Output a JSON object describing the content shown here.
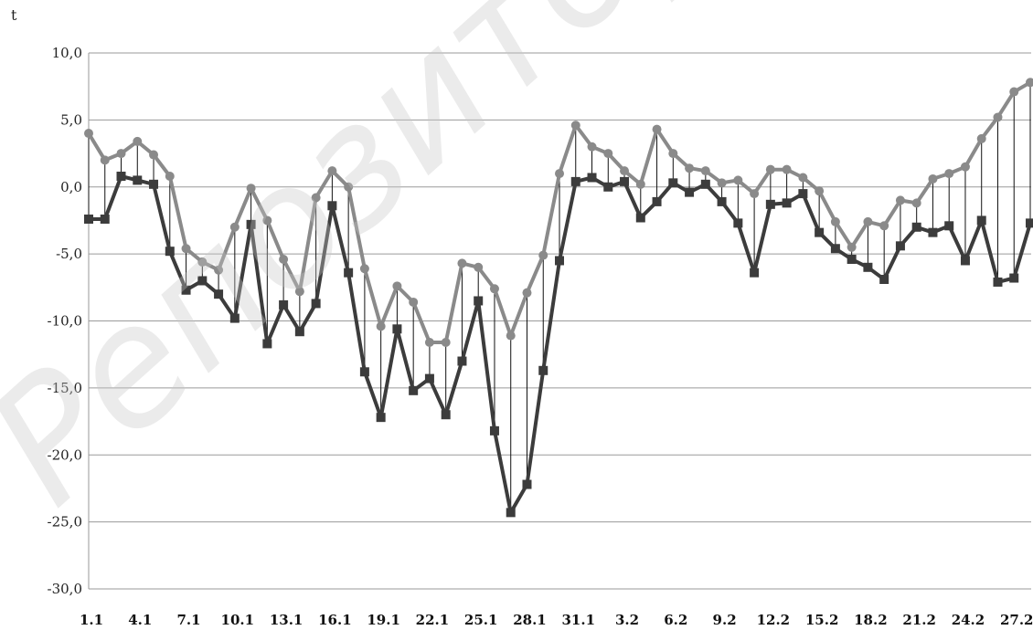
{
  "watermark": "Репозиторий",
  "chart_data": {
    "type": "line",
    "title": "",
    "xlabel": "",
    "ylabel": "t",
    "ylim": [
      -30,
      10
    ],
    "yticks": [
      10,
      5,
      0,
      -5,
      -10,
      -15,
      -20,
      -25,
      -30
    ],
    "ytick_labels": [
      "10,0",
      "5,0",
      "0,0",
      "-5,0",
      "-10,0",
      "-15,0",
      "-20,0",
      "-25,0",
      "-30,0"
    ],
    "grid": true,
    "legend": "none",
    "x_tick_labels": [
      "1.1",
      "4.1",
      "7.1",
      "10.1",
      "13.1",
      "16.1",
      "19.1",
      "22.1",
      "25.1",
      "28.1",
      "31.1",
      "3.2",
      "6.2",
      "9.2",
      "12.2",
      "15.2",
      "18.2",
      "21.2",
      "24.2",
      "27.2"
    ],
    "x_tick_index": [
      0,
      3,
      6,
      9,
      12,
      15,
      18,
      21,
      24,
      27,
      30,
      33,
      36,
      39,
      42,
      45,
      48,
      51,
      54,
      57
    ],
    "drop_lines": true,
    "series": [
      {
        "color": "#8a8a8a",
        "marker": "circle",
        "values": [
          4.0,
          2.0,
          2.5,
          3.4,
          2.4,
          0.8,
          -4.6,
          -5.6,
          -6.2,
          -3.0,
          -0.1,
          -2.5,
          -5.4,
          -7.8,
          -0.8,
          1.2,
          0.0,
          -6.1,
          -10.4,
          -7.4,
          -8.6,
          -11.6,
          -11.6,
          -5.7,
          -6.0,
          -7.6,
          -11.1,
          -7.9,
          -5.1,
          1.0,
          4.6,
          3.0,
          2.5,
          1.2,
          0.2,
          4.3,
          2.5,
          1.4,
          1.2,
          0.3,
          0.5,
          -0.5,
          1.3,
          1.3,
          0.7,
          -0.3,
          -2.6,
          -4.5,
          -2.6,
          -2.9,
          -1.0,
          -1.2,
          0.6,
          1.0,
          1.5,
          3.6,
          5.2,
          7.1,
          7.8
        ]
      },
      {
        "color": "#3c3c3c",
        "marker": "square",
        "values": [
          -2.4,
          -2.4,
          0.8,
          0.5,
          0.2,
          -4.8,
          -7.7,
          -7.0,
          -8.0,
          -9.8,
          -2.8,
          -11.7,
          -8.8,
          -10.8,
          -8.7,
          -1.4,
          -6.4,
          -13.8,
          -17.2,
          -10.6,
          -15.2,
          -14.3,
          -17.0,
          -13.0,
          -8.5,
          -18.2,
          -24.3,
          -22.2,
          -13.7,
          -5.5,
          0.4,
          0.7,
          0.0,
          0.4,
          -2.3,
          -1.1,
          0.3,
          -0.4,
          0.2,
          -1.1,
          -2.7,
          -6.4,
          -1.3,
          -1.2,
          -0.5,
          -3.4,
          -4.6,
          -5.4,
          -6.0,
          -6.9,
          -4.4,
          -3.0,
          -3.4,
          -2.9,
          -5.5,
          -2.5,
          -7.1,
          -6.8,
          -2.7
        ]
      }
    ]
  }
}
